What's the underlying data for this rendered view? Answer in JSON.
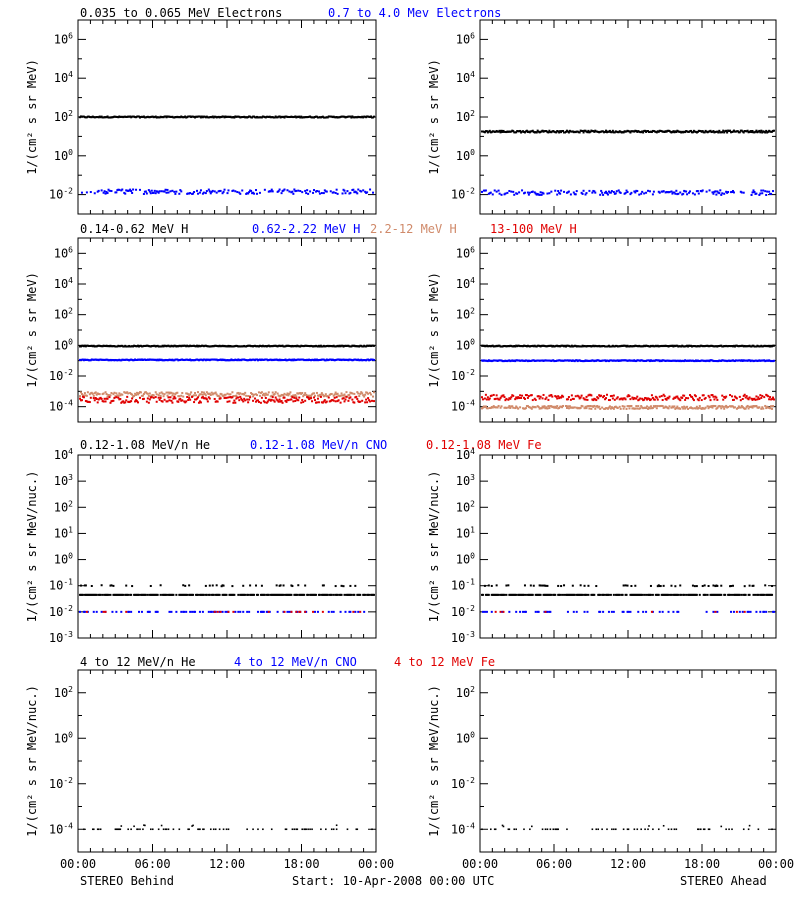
{
  "chart_data": {
    "type": "scatter",
    "time_ticks": [
      "00:00",
      "06:00",
      "12:00",
      "18:00",
      "00:00"
    ],
    "footer": {
      "left": "STEREO Behind",
      "center": "Start: 10-Apr-2008 00:00 UTC",
      "right": "STEREO Ahead"
    },
    "rows": [
      {
        "id": "electrons",
        "ylabel": "1/(cm² s sr MeV)",
        "ylim_exp": [
          -3,
          7
        ],
        "ticks": [
          {
            "e": -2,
            "label": "10",
            "sup": "-2"
          },
          {
            "e": 0,
            "label": "10",
            "sup": "0"
          },
          {
            "e": 2,
            "label": "10",
            "sup": "2"
          },
          {
            "e": 4,
            "label": "10",
            "sup": "4"
          },
          {
            "e": 6,
            "label": "10",
            "sup": "6"
          }
        ],
        "legend": [
          {
            "text": "0.035 to 0.065 MeV Electrons",
            "color": "#000000"
          },
          {
            "text": "0.7 to 4.0 Mev Electrons",
            "color": "#0000ff"
          }
        ],
        "series": {
          "behind": [
            {
              "name": "0.035 to 0.065 MeV Electrons",
              "color": "#000000",
              "level": 2.0,
              "jitter": 0.03,
              "density": 1.0,
              "size": 2
            },
            {
              "name": "0.7 to 4.0 Mev Electrons",
              "color": "#0000ff",
              "level": -1.85,
              "jitter": 0.12,
              "density": 0.6,
              "size": 2
            }
          ],
          "ahead": [
            {
              "name": "0.035 to 0.065 MeV Electrons",
              "color": "#000000",
              "level": 1.25,
              "jitter": 0.05,
              "density": 1.0,
              "size": 2
            },
            {
              "name": "0.7 to 4.0 Mev Electrons",
              "color": "#0000ff",
              "level": -1.9,
              "jitter": 0.12,
              "density": 0.6,
              "size": 2
            }
          ]
        }
      },
      {
        "id": "protons",
        "ylabel": "1/(cm² s sr MeV)",
        "ylim_exp": [
          -5,
          7
        ],
        "ticks": [
          {
            "e": -4,
            "label": "10",
            "sup": "-4"
          },
          {
            "e": -2,
            "label": "10",
            "sup": "-2"
          },
          {
            "e": 0,
            "label": "10",
            "sup": "0"
          },
          {
            "e": 2,
            "label": "10",
            "sup": "2"
          },
          {
            "e": 4,
            "label": "10",
            "sup": "4"
          },
          {
            "e": 6,
            "label": "10",
            "sup": "6"
          }
        ],
        "legend": [
          {
            "text": "0.14-0.62 MeV H",
            "color": "#000000"
          },
          {
            "text": "0.62-2.22 MeV H",
            "color": "#0000ff"
          },
          {
            "text": "2.2-12 MeV H",
            "color": "#d08a6a"
          },
          {
            "text": "13-100 MeV H",
            "color": "#e00000"
          }
        ],
        "series": {
          "behind": [
            {
              "name": "0.14-0.62 MeV H",
              "color": "#000000",
              "level": -0.05,
              "jitter": 0.03,
              "density": 1.0,
              "size": 2
            },
            {
              "name": "0.62-2.22 MeV H",
              "color": "#0000ff",
              "level": -0.95,
              "jitter": 0.03,
              "density": 1.0,
              "size": 2
            },
            {
              "name": "2.2-12 MeV H",
              "color": "#d08a6a",
              "level": -3.2,
              "jitter": 0.15,
              "density": 0.9,
              "size": 2
            },
            {
              "name": "13-100 MeV H",
              "color": "#e00000",
              "level": -3.55,
              "jitter": 0.2,
              "density": 0.8,
              "size": 2
            }
          ],
          "ahead": [
            {
              "name": "0.14-0.62 MeV H",
              "color": "#000000",
              "level": -0.05,
              "jitter": 0.03,
              "density": 1.0,
              "size": 2
            },
            {
              "name": "0.62-2.22 MeV H",
              "color": "#0000ff",
              "level": -1.0,
              "jitter": 0.03,
              "density": 1.0,
              "size": 2
            },
            {
              "name": "2.2-12 MeV H",
              "color": "#d08a6a",
              "level": -4.05,
              "jitter": 0.1,
              "density": 0.9,
              "size": 2
            },
            {
              "name": "13-100 MeV H",
              "color": "#e00000",
              "level": -3.4,
              "jitter": 0.18,
              "density": 0.8,
              "size": 2
            }
          ]
        }
      },
      {
        "id": "heavy_low",
        "ylabel": "1/(cm² s sr MeV/nuc.)",
        "ylim_exp": [
          -3,
          4
        ],
        "ticks": [
          {
            "e": -3,
            "label": "10",
            "sup": "-3"
          },
          {
            "e": -2,
            "label": "10",
            "sup": "-2"
          },
          {
            "e": -1,
            "label": "10",
            "sup": "-1"
          },
          {
            "e": 0,
            "label": "10",
            "sup": "0"
          },
          {
            "e": 1,
            "label": "10",
            "sup": "1"
          },
          {
            "e": 2,
            "label": "10",
            "sup": "2"
          },
          {
            "e": 3,
            "label": "10",
            "sup": "3"
          },
          {
            "e": 4,
            "label": "10",
            "sup": "4"
          }
        ],
        "legend": [
          {
            "text": "0.12-1.08 MeV/n He",
            "color": "#000000"
          },
          {
            "text": "0.12-1.08 MeV/n CNO",
            "color": "#0000ff"
          },
          {
            "text": "0.12-1.08 MeV Fe",
            "color": "#e00000"
          }
        ],
        "series": {
          "behind": [
            {
              "name": "0.12-1.08 MeV/n He",
              "color": "#000000",
              "level": -1.35,
              "jitter": 0.0,
              "density": 0.75,
              "size": 2
            },
            {
              "name": "0.12-1.08 MeV/n He",
              "color": "#000000",
              "level": -1.0,
              "jitter": 0.02,
              "density": 0.18,
              "size": 2
            },
            {
              "name": "0.12-1.08 MeV/n CNO",
              "color": "#0000ff",
              "level": -2.0,
              "jitter": 0.0,
              "density": 0.28,
              "size": 2
            },
            {
              "name": "0.12-1.08 MeV Fe",
              "color": "#e00000",
              "level": -2.0,
              "jitter": 0.0,
              "density": 0.05,
              "size": 2
            }
          ],
          "ahead": [
            {
              "name": "0.12-1.08 MeV/n He",
              "color": "#000000",
              "level": -1.35,
              "jitter": 0.0,
              "density": 0.7,
              "size": 2
            },
            {
              "name": "0.12-1.08 MeV/n He",
              "color": "#000000",
              "level": -1.0,
              "jitter": 0.02,
              "density": 0.14,
              "size": 2
            },
            {
              "name": "0.12-1.08 MeV/n CNO",
              "color": "#0000ff",
              "level": -2.0,
              "jitter": 0.0,
              "density": 0.22,
              "size": 2
            },
            {
              "name": "0.12-1.08 MeV Fe",
              "color": "#e00000",
              "level": -2.0,
              "jitter": 0.0,
              "density": 0.04,
              "size": 2
            }
          ]
        }
      },
      {
        "id": "heavy_high",
        "ylabel": "1/(cm² s sr MeV/nuc.)",
        "ylim_exp": [
          -5,
          3
        ],
        "ticks": [
          {
            "e": -4,
            "label": "10",
            "sup": "-4"
          },
          {
            "e": -2,
            "label": "10",
            "sup": "-2"
          },
          {
            "e": 0,
            "label": "10",
            "sup": "0"
          },
          {
            "e": 2,
            "label": "10",
            "sup": "2"
          }
        ],
        "legend": [
          {
            "text": "4 to 12 MeV/n He",
            "color": "#000000"
          },
          {
            "text": "4 to 12 MeV/n CNO",
            "color": "#0000ff"
          },
          {
            "text": "4 to 12 MeV Fe",
            "color": "#e00000"
          }
        ],
        "series": {
          "behind": [
            {
              "name": "4 to 12 MeV/n He",
              "color": "#000000",
              "level": -4.0,
              "jitter": 0.0,
              "density": 0.22,
              "size": 1.6
            },
            {
              "name": "4 to 12 MeV/n He",
              "color": "#000000",
              "level": -3.85,
              "jitter": 0.03,
              "density": 0.02,
              "size": 1.6
            }
          ],
          "ahead": [
            {
              "name": "4 to 12 MeV/n He",
              "color": "#000000",
              "level": -4.0,
              "jitter": 0.0,
              "density": 0.18,
              "size": 1.6
            },
            {
              "name": "4 to 12 MeV/n He",
              "color": "#000000",
              "level": -3.85,
              "jitter": 0.03,
              "density": 0.02,
              "size": 1.6
            }
          ]
        }
      }
    ]
  }
}
